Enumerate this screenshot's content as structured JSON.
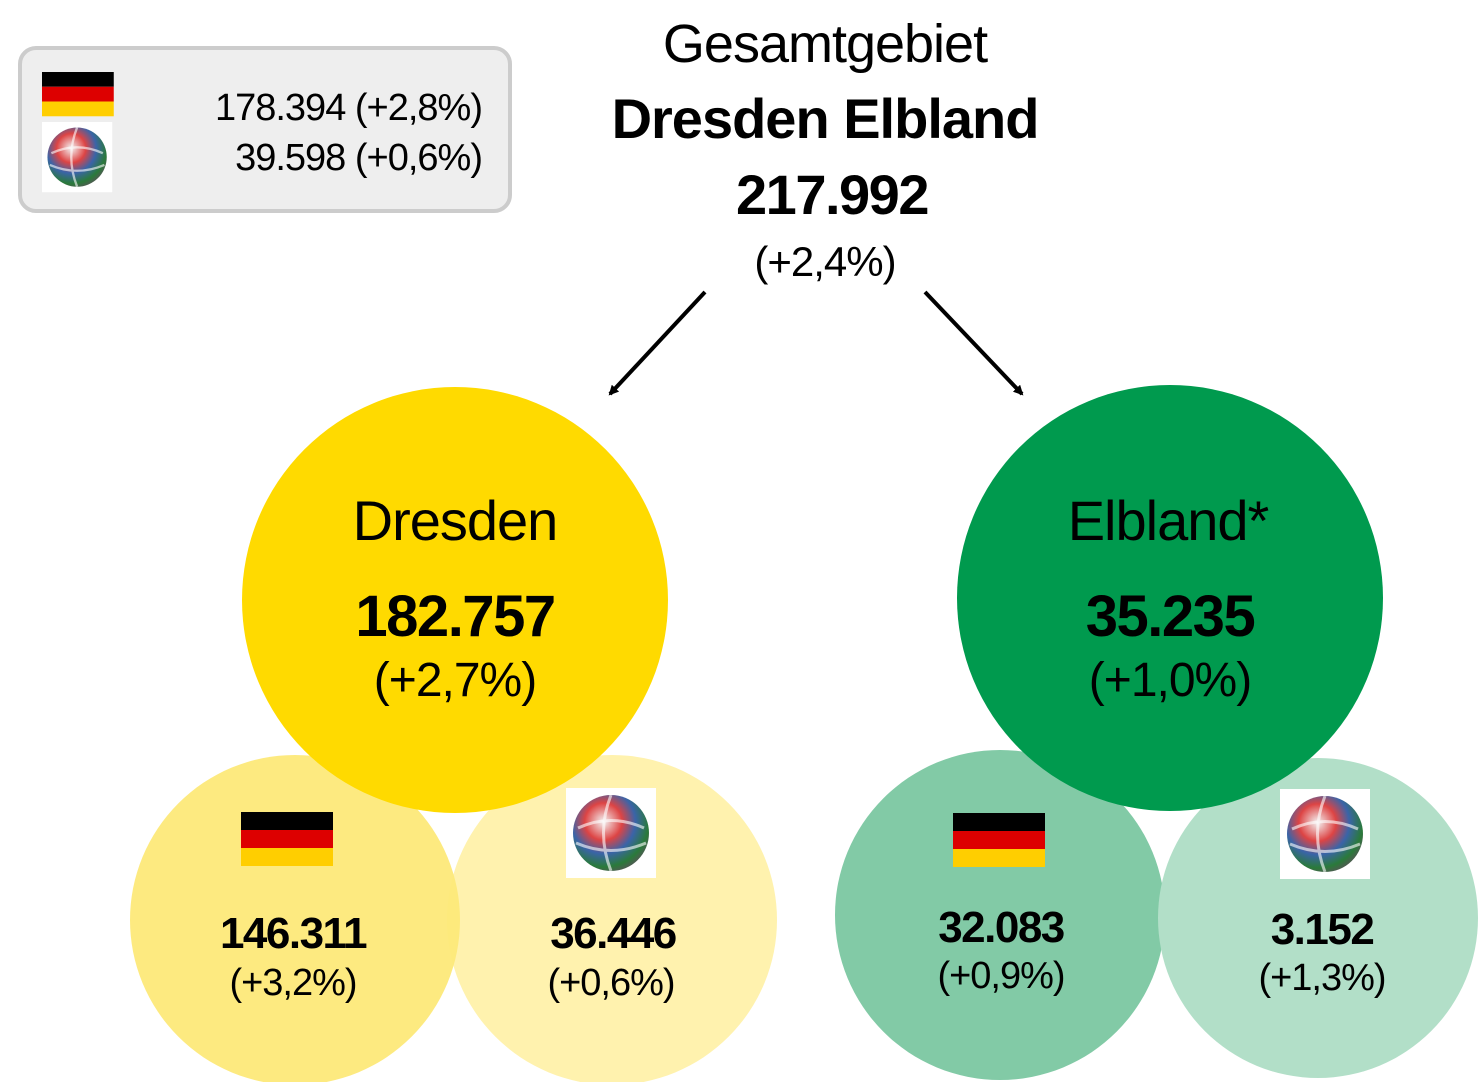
{
  "legend": {
    "german": "178.394 (+2,8%)",
    "international": "39.598 (+0,6%)"
  },
  "header": {
    "line1": "Gesamtgebiet",
    "line2": "Dresden Elbland",
    "total": "217.992",
    "change": "(+2,4%)"
  },
  "nodes": [
    {
      "label": "Dresden",
      "value": "182.757",
      "change": "(+2,7%)",
      "children": [
        {
          "value": "146.311",
          "change": "(+3,2%)"
        },
        {
          "value": "36.446",
          "change": "(+0,6%)"
        }
      ]
    },
    {
      "label": "Elbland*",
      "value": "35.235",
      "change": "(+1,0%)",
      "children": [
        {
          "value": "32.083",
          "change": "(+0,9%)"
        },
        {
          "value": "3.152",
          "change": "(+1,3%)"
        }
      ]
    }
  ]
}
